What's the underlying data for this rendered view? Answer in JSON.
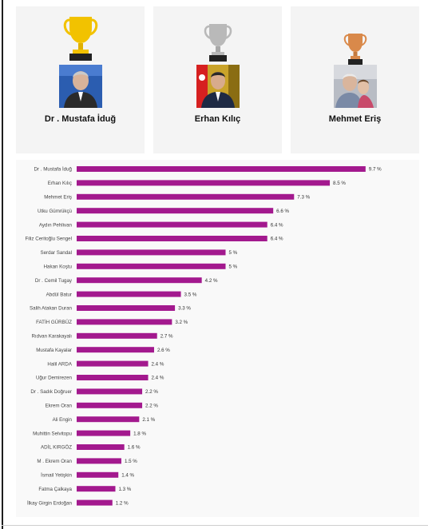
{
  "podium": [
    {
      "rank": 1,
      "name": "Dr .  Mustafa İduğ",
      "trophy": "gold-trophy-icon",
      "color": "#f2c200"
    },
    {
      "rank": 2,
      "name": "Erhan Kılıç",
      "trophy": "silver-trophy-icon",
      "color": "#b9b9b9"
    },
    {
      "rank": 3,
      "name": "Mehmet Eriş",
      "trophy": "bronze-trophy-icon",
      "color": "#d9894a"
    }
  ],
  "chart_data": {
    "type": "bar",
    "orientation": "horizontal",
    "bar_color": "#a3198e",
    "value_suffix": " %",
    "xlim": [
      0,
      10
    ],
    "grid": false,
    "categories": [
      "Dr . Mustafa İduğ",
      "Erhan Kılıç",
      "Mehmet Eriş",
      "Utku Gümrükçü",
      "Aydın Pehlivan",
      "Filiz Ceritoğlu Sengel",
      "Serdar Sandal",
      "Hakan Koştu",
      "Dr . Cemil Tugay",
      "Abdül Batur",
      "Salih Atakan Duran",
      "FATİH GÜRBÜZ",
      "Rıdvan Karakayalı",
      "Mustafa Kayalar",
      "Halil ARDA",
      "Uğur Demirezen",
      "Dr . Sadık Doğruer",
      "Ekrem Oran",
      "Ali Engin",
      "Muhittin Selvitopu",
      "ADİL KIRGÖZ",
      "M . Ekrem Oran",
      "İsmail Yetişkin",
      "Fatma Çalkaya",
      "İlkay Girgin Erdoğan"
    ],
    "values": [
      9.7,
      8.5,
      7.3,
      6.6,
      6.4,
      6.4,
      5,
      5,
      4.2,
      3.5,
      3.3,
      3.2,
      2.7,
      2.6,
      2.4,
      2.4,
      2.2,
      2.2,
      2.1,
      1.8,
      1.6,
      1.5,
      1.4,
      1.3,
      1.2
    ],
    "value_labels": [
      "9.7 %",
      "8.5 %",
      "7.3 %",
      "6.6 %",
      "6.4 %",
      "6.4 %",
      "5 %",
      "5 %",
      "4.2 %",
      "3.5 %",
      "3.3 %",
      "3.2 %",
      "2.7 %",
      "2.6 %",
      "2.4 %",
      "2.4 %",
      "2.2 %",
      "2.2 %",
      "2.1 %",
      "1.8 %",
      "1.6 %",
      "1.5 %",
      "1.4 %",
      "1.3 %",
      "1.2 %"
    ]
  }
}
